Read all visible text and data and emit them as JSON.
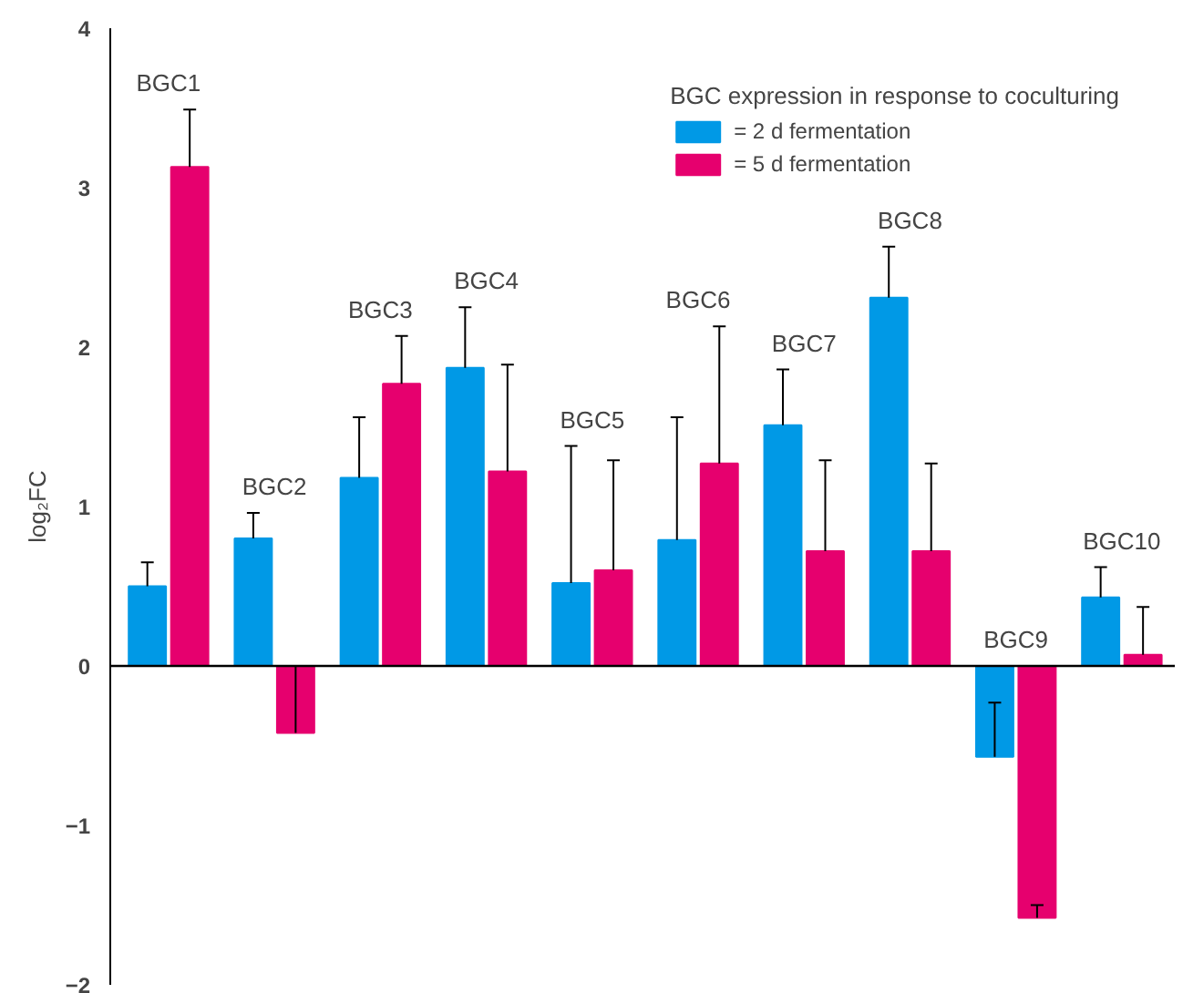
{
  "chart_data": {
    "type": "bar",
    "ylabel": "log₂FC",
    "legend_title": "BGC expression in response to coculturing",
    "categories": [
      "BGC1",
      "BGC2",
      "BGC3",
      "BGC4",
      "BGC5",
      "BGC6",
      "BGC7",
      "BGC8",
      "BGC9",
      "BGC10"
    ],
    "series": [
      {
        "name": "= 2 d fermentation",
        "color": "#0099e6",
        "values": [
          0.5,
          0.8,
          1.18,
          1.87,
          0.52,
          0.79,
          1.51,
          2.31,
          -0.57,
          0.43
        ],
        "errors": [
          [
            0.5,
            0.65
          ],
          [
            0.8,
            0.96
          ],
          [
            1.18,
            1.56
          ],
          [
            1.87,
            2.25
          ],
          [
            0.52,
            1.38
          ],
          [
            0.79,
            1.56
          ],
          [
            1.51,
            1.86
          ],
          [
            2.31,
            2.63
          ],
          [
            -0.57,
            -0.23
          ],
          [
            0.43,
            0.62
          ]
        ]
      },
      {
        "name": "= 5 d fermentation",
        "color": "#e6006e",
        "values": [
          3.13,
          -0.42,
          1.77,
          1.22,
          0.6,
          1.27,
          0.72,
          0.72,
          -1.58,
          0.07
        ],
        "errors": [
          [
            3.13,
            3.49
          ],
          [
            -0.42,
            0.0
          ],
          [
            1.77,
            2.07
          ],
          [
            1.22,
            1.89
          ],
          [
            0.6,
            1.29
          ],
          [
            1.27,
            2.13
          ],
          [
            0.72,
            1.29
          ],
          [
            0.72,
            1.27
          ],
          [
            -1.58,
            -1.5
          ],
          [
            0.07,
            0.37
          ]
        ]
      }
    ],
    "ref_lines": [
      {
        "axis": "y",
        "value": 0,
        "color": "#000000"
      }
    ],
    "ylim": [
      -2,
      4
    ],
    "yticks": [
      -2,
      -1,
      0,
      1,
      2,
      3,
      4
    ],
    "grid": false,
    "legend": "top right",
    "tick_labels": "y"
  }
}
